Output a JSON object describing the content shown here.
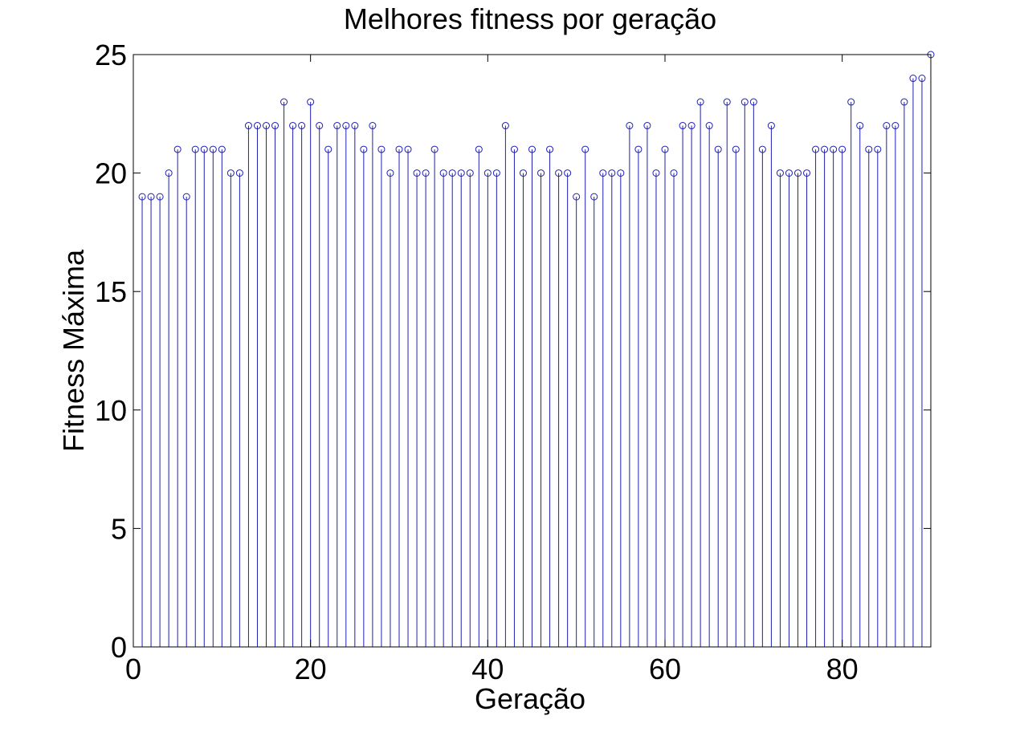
{
  "chart_data": {
    "type": "stem",
    "title": "Melhores fitness por geração",
    "xlabel": "Geração",
    "ylabel": "Fitness Máxima",
    "xlim": [
      0,
      90
    ],
    "ylim": [
      0,
      25
    ],
    "xticks": [
      0,
      20,
      40,
      60,
      80
    ],
    "yticks": [
      0,
      5,
      10,
      15,
      20,
      25
    ],
    "grid": false,
    "marker": "circle",
    "color": "#1f1fb4",
    "series": [
      {
        "x": [
          1,
          2,
          3,
          4,
          5,
          6,
          7,
          8,
          9,
          10,
          11,
          12,
          13,
          14,
          15,
          16,
          17,
          18,
          19,
          20,
          21,
          22,
          23,
          24,
          25,
          26,
          27,
          28,
          29,
          30,
          31,
          32,
          33,
          34,
          35,
          36,
          37,
          38,
          39,
          40,
          41,
          42,
          43,
          44,
          45,
          46,
          47,
          48,
          49,
          50,
          51,
          52,
          53,
          54,
          55,
          56,
          57,
          58,
          59,
          60,
          61,
          62,
          63,
          64,
          65,
          66,
          67,
          68,
          69,
          70,
          71,
          72,
          73,
          74,
          75,
          76,
          77,
          78,
          79,
          80,
          81,
          82,
          83,
          84,
          85,
          86,
          87,
          88,
          89,
          90
        ],
        "values": [
          19,
          19,
          19,
          20,
          21,
          19,
          21,
          21,
          21,
          21,
          20,
          20,
          22,
          22,
          22,
          22,
          23,
          22,
          22,
          23,
          22,
          21,
          22,
          22,
          22,
          21,
          22,
          21,
          20,
          21,
          21,
          20,
          20,
          21,
          20,
          20,
          20,
          20,
          21,
          20,
          20,
          22,
          21,
          20,
          21,
          20,
          21,
          20,
          20,
          19,
          21,
          19,
          20,
          20,
          20,
          22,
          21,
          22,
          20,
          21,
          20,
          22,
          22,
          23,
          22,
          21,
          23,
          21,
          23,
          23,
          21,
          22,
          20,
          20,
          20,
          20,
          21,
          21,
          21,
          21,
          23,
          22,
          21,
          21,
          22,
          22,
          23,
          24,
          24,
          25
        ]
      }
    ]
  }
}
